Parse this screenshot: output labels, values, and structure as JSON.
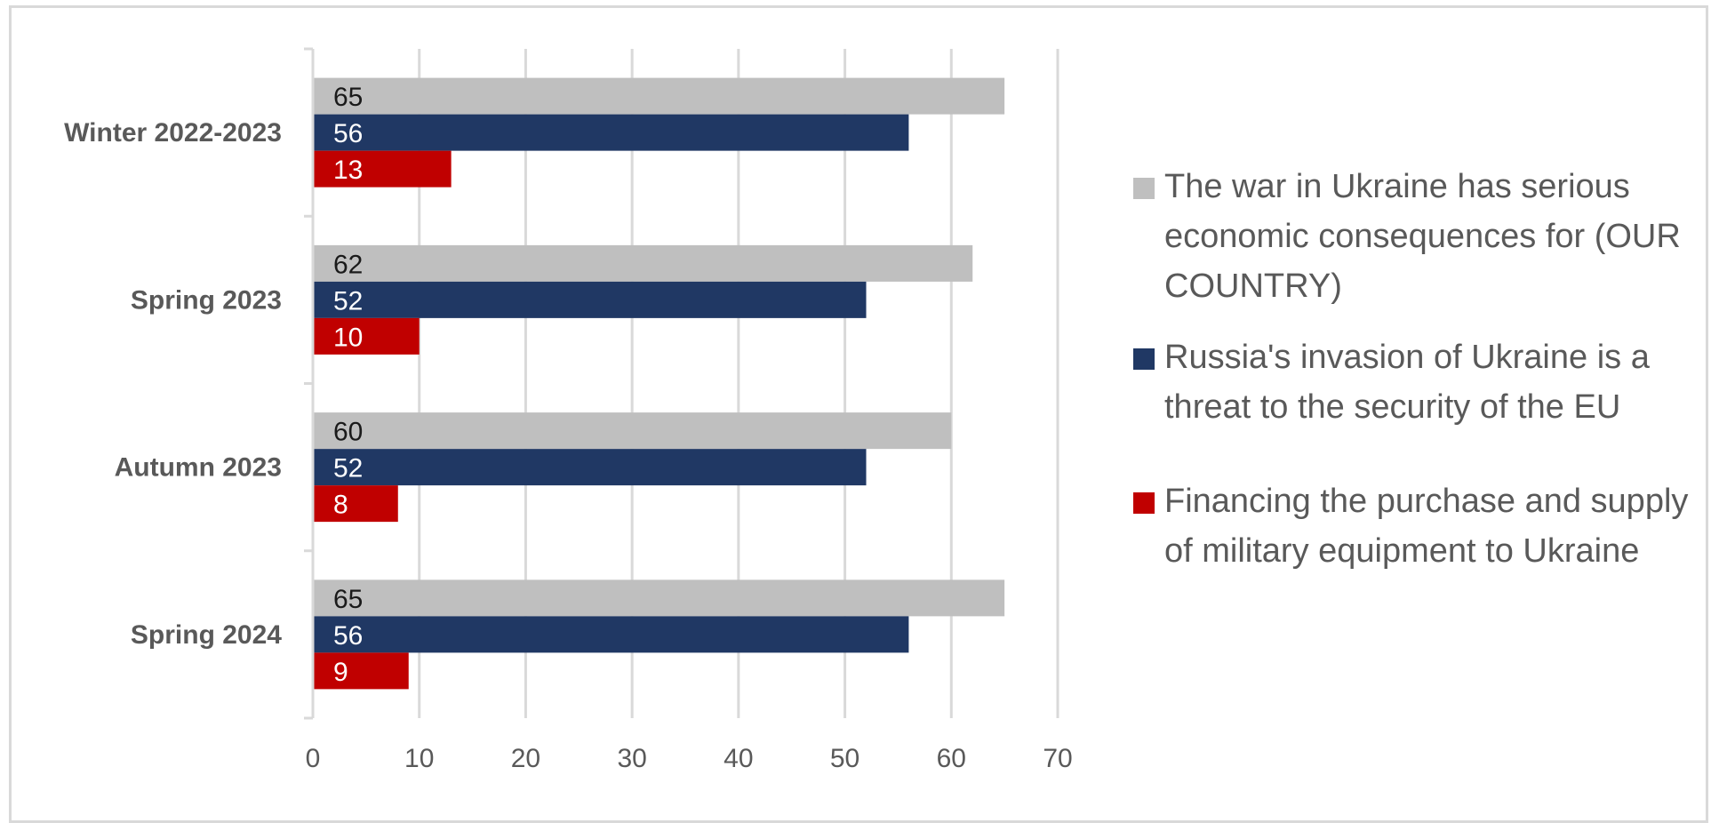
{
  "chart_data": {
    "type": "bar",
    "orientation": "horizontal",
    "categories": [
      "Winter 2022-2023",
      "Spring 2023",
      "Autumn 2023",
      "Spring 2024"
    ],
    "series": [
      {
        "name": "The war in Ukraine has serious economic consequences for (OUR COUNTRY)",
        "color": "#bfbfbf",
        "label_color": "#1a1a1a",
        "values": [
          65,
          62,
          60,
          65
        ]
      },
      {
        "name": "Russia's invasion of Ukraine is a threat to the security of the EU",
        "color": "#203864",
        "label_color": "#ffffff",
        "values": [
          56,
          52,
          52,
          56
        ]
      },
      {
        "name": "Financing the purchase and supply of military equipment to Ukraine",
        "color": "#c00000",
        "label_color": "#ffffff",
        "values": [
          13,
          10,
          8,
          9
        ]
      }
    ],
    "x_ticks": [
      "0",
      "10",
      "20",
      "30",
      "40",
      "50",
      "60",
      "70"
    ],
    "xlim": [
      0,
      70
    ],
    "grid": true,
    "legend_position": "right",
    "data_labels": true
  }
}
